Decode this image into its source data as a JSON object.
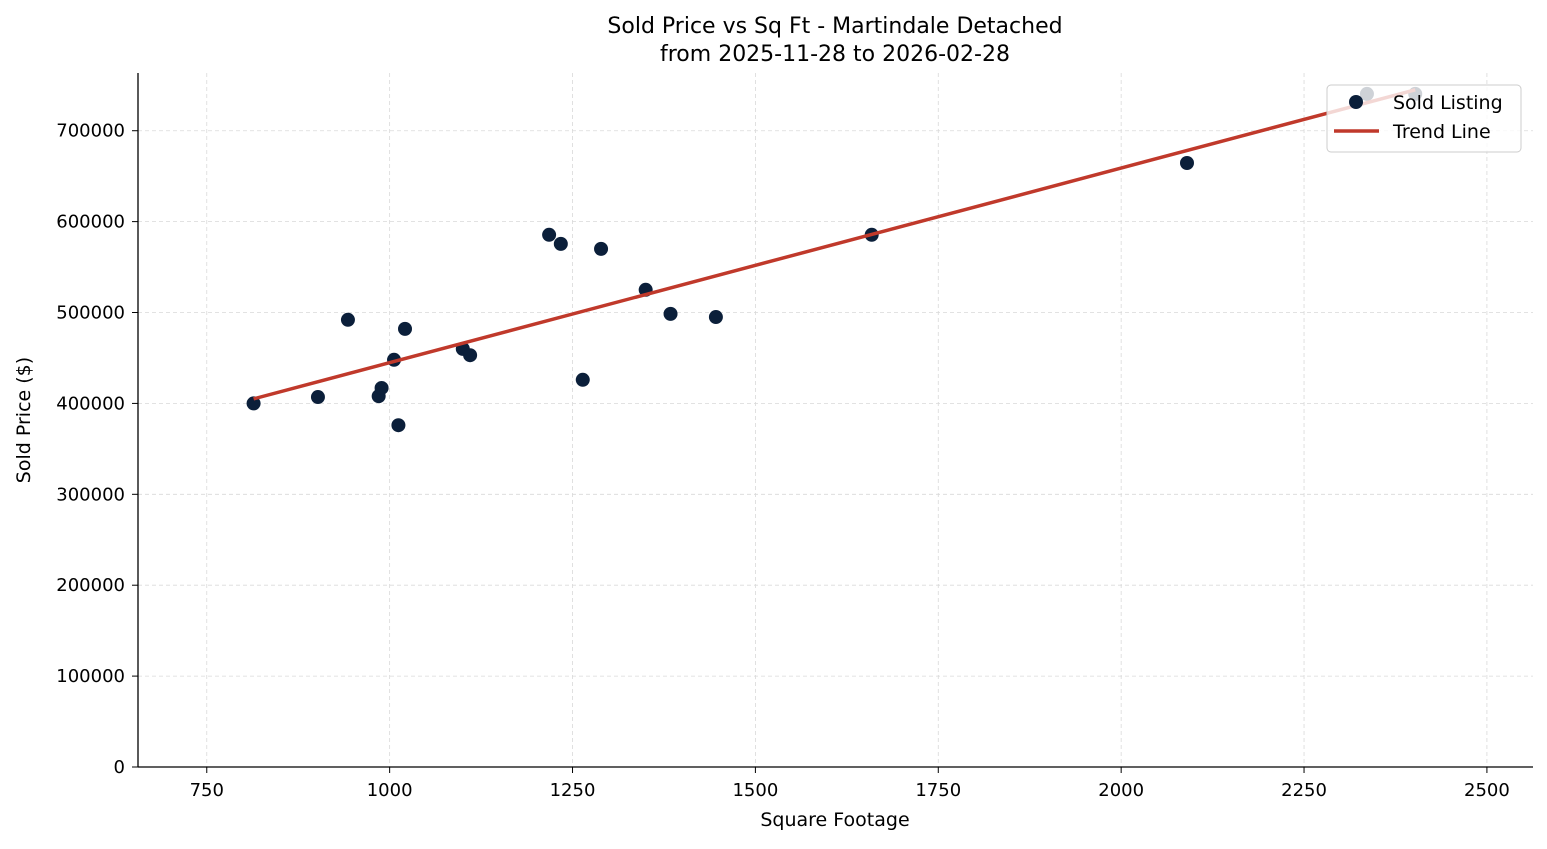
{
  "chart_data": {
    "type": "scatter",
    "title": "Sold Price vs Sq Ft - Martindale Detached",
    "subtitle": "from 2025-11-28 to 2026-02-28",
    "xlabel": "Square Footage",
    "ylabel": "Sold Price ($)",
    "xlim": [
      656,
      2563
    ],
    "ylim": [
      0,
      763500
    ],
    "xticks": [
      750,
      1000,
      1250,
      1500,
      1750,
      2000,
      2250,
      2500
    ],
    "yticks": [
      0,
      100000,
      200000,
      300000,
      400000,
      500000,
      600000,
      700000
    ],
    "grid": true,
    "legend_position": "top-right",
    "series": [
      {
        "name": "Sold Listing",
        "type": "scatter",
        "color": "#0b1f3a",
        "x": [
          814,
          902,
          943,
          985,
          989,
          1006,
          1012,
          1021,
          1100,
          1110,
          1218,
          1234,
          1264,
          1289,
          1350,
          1384,
          1446,
          1659,
          2090,
          2336,
          2402
        ],
        "y": [
          400000,
          407000,
          492000,
          408000,
          417000,
          448000,
          376000,
          482000,
          460000,
          453000,
          585500,
          575500,
          426000,
          570000,
          525000,
          498500,
          495000,
          585500,
          664500,
          740500,
          740500
        ]
      },
      {
        "name": "Trend Line",
        "type": "line",
        "color": "#c0392b",
        "x": [
          814,
          2402
        ],
        "y": [
          405000,
          745000
        ]
      }
    ]
  }
}
